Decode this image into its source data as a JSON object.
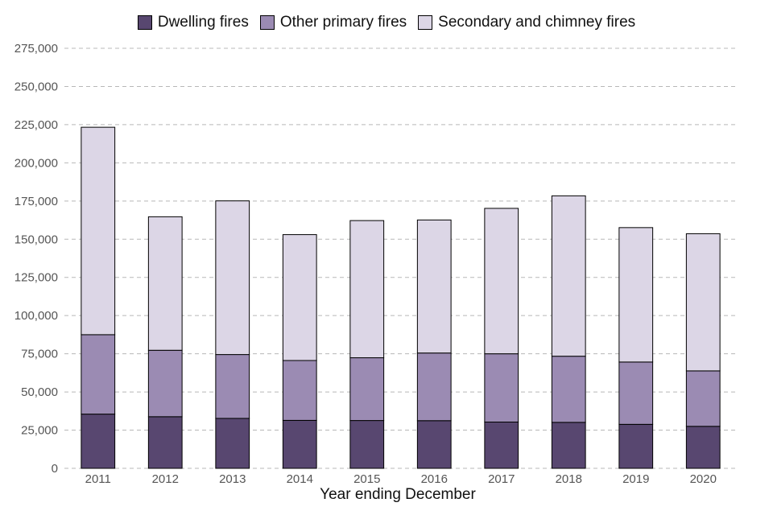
{
  "chart_data": {
    "type": "bar",
    "stacked": true,
    "xlabel": "Year ending December",
    "ylabel": "",
    "ylim": [
      0,
      275000
    ],
    "yticks": [
      0,
      25000,
      50000,
      75000,
      100000,
      125000,
      150000,
      175000,
      200000,
      225000,
      250000,
      275000
    ],
    "ytick_labels": [
      "0",
      "25,000",
      "50,000",
      "75,000",
      "100,000",
      "125,000",
      "150,000",
      "175,000",
      "200,000",
      "225,000",
      "250,000",
      "275,000"
    ],
    "grid": "horizontal dashed",
    "legend_position": "top-center",
    "categories": [
      "2011",
      "2012",
      "2013",
      "2014",
      "2015",
      "2016",
      "2017",
      "2018",
      "2019",
      "2020"
    ],
    "series": [
      {
        "name": "Dwelling fires",
        "color": "#584770",
        "values": [
          35500,
          33800,
          32700,
          31400,
          31300,
          31200,
          30300,
          30100,
          28800,
          27500
        ]
      },
      {
        "name": "Other primary fires",
        "color": "#9b8bb3",
        "values": [
          52000,
          43500,
          41800,
          39200,
          41100,
          44300,
          44700,
          43300,
          40800,
          36300
        ]
      },
      {
        "name": "Secondary and chimney fires",
        "color": "#dcd6e6",
        "values": [
          135800,
          87400,
          100600,
          82400,
          89800,
          87100,
          95200,
          105000,
          88000,
          89800
        ]
      }
    ]
  }
}
